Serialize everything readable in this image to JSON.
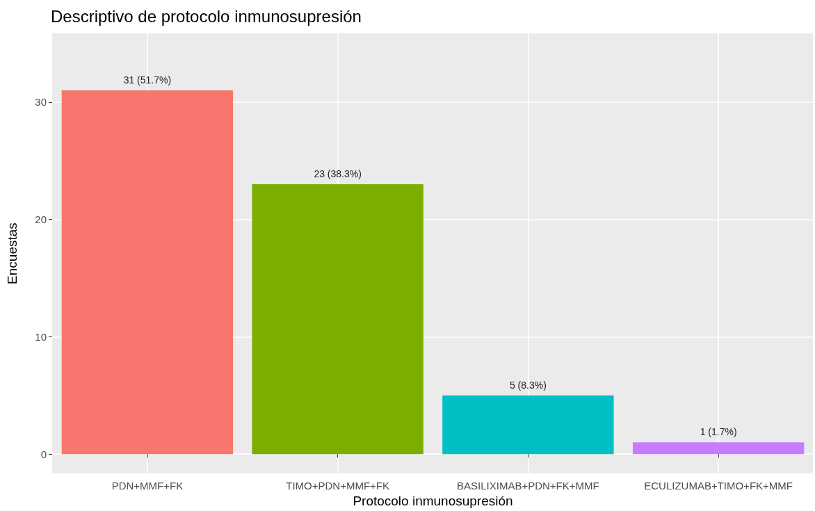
{
  "chart_data": {
    "type": "bar",
    "title": "Descriptivo de protocolo inmunosupresión",
    "xlabel": "Protocolo inmunosupresión",
    "ylabel": "Encuestas",
    "categories": [
      "PDN+MMF+FK",
      "TIMO+PDN+MMF+FK",
      "BASILIXIMAB+PDN+FK+MMF",
      "ECULIZUMAB+TIMO+FK+MMF"
    ],
    "values": [
      31,
      23,
      5,
      1
    ],
    "colors": [
      "#f8766d",
      "#7cae00",
      "#00bfc4",
      "#c77cff"
    ],
    "value_labels": [
      "31 (51.7%)",
      "23 (38.3%)",
      "5 (8.3%)",
      "1 (1.7%)"
    ],
    "ylim": [
      -1.65,
      35.85
    ],
    "yticks": [
      0,
      10,
      20,
      30
    ],
    "grid": true
  }
}
